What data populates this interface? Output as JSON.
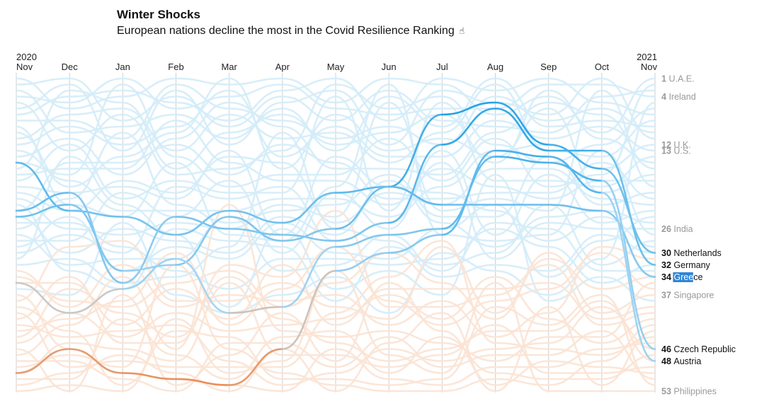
{
  "header": {
    "title": "Winter Shocks",
    "subtitle": "European nations decline the most in the Covid Resilience Ranking",
    "cursor_icon": "pointer-hand-icon"
  },
  "colors": {
    "top_accent": "#1a9fe6",
    "top_light": "#d4ecf8",
    "bottom_accent": "#ee8c52",
    "bottom_light": "#fbe3d4",
    "grid": "#cfcfcf",
    "selection": "#2f86d6"
  },
  "chart_data": {
    "type": "line",
    "title": "Winter Shocks",
    "subtitle": "European nations decline the most in the Covid Resilience Ranking",
    "x": [
      "Nov",
      "Dec",
      "Jan",
      "Feb",
      "Mar",
      "Apr",
      "May",
      "Jun",
      "Jul",
      "Aug",
      "Sep",
      "Oct",
      "Nov"
    ],
    "x_year_labels": [
      {
        "index": 0,
        "label": "2020"
      },
      {
        "index": 12,
        "label": "2021"
      }
    ],
    "ylim": [
      1,
      53
    ],
    "y_inverted": true,
    "grid": "vertical",
    "highlighted_series": [
      {
        "name": "Netherlands",
        "final_rank": 30,
        "values": [
          15,
          23,
          24,
          27,
          23,
          25,
          20,
          19,
          7,
          5,
          12,
          16,
          30
        ]
      },
      {
        "name": "Germany",
        "final_rank": 32,
        "values": [
          23,
          20,
          35,
          24,
          26,
          27,
          28,
          25,
          12,
          6,
          13,
          13,
          32
        ]
      },
      {
        "name": "Greece",
        "final_rank": 34,
        "values": [
          24,
          22,
          33,
          32,
          24,
          28,
          26,
          19,
          22,
          22,
          22,
          23,
          34
        ]
      },
      {
        "name": "Czech Republic",
        "final_rank": 46,
        "values": [
          35,
          40,
          36,
          31,
          40,
          39,
          29,
          27,
          26,
          14,
          15,
          18,
          46
        ]
      },
      {
        "name": "Austria",
        "final_rank": 48,
        "values": [
          50,
          46,
          50,
          51,
          52,
          46,
          33,
          30,
          27,
          13,
          14,
          20,
          48
        ]
      }
    ],
    "labels": [
      {
        "rank": 1,
        "name": "U.A.E.",
        "style": "gray"
      },
      {
        "rank": 4,
        "name": "Ireland",
        "style": "gray"
      },
      {
        "rank": 12,
        "name": "U.K.",
        "style": "gray"
      },
      {
        "rank": 13,
        "name": "U.S.",
        "style": "gray"
      },
      {
        "rank": 26,
        "name": "India",
        "style": "gray"
      },
      {
        "rank": 30,
        "name": "Netherlands",
        "style": "dark"
      },
      {
        "rank": 32,
        "name": "Germany",
        "style": "dark"
      },
      {
        "rank": 34,
        "name": "Greece",
        "style": "dark",
        "selected": true
      },
      {
        "rank": 37,
        "name": "Singapore",
        "style": "gray"
      },
      {
        "rank": 46,
        "name": "Czech Republic",
        "style": "dark"
      },
      {
        "rank": 48,
        "name": "Austria",
        "style": "dark"
      },
      {
        "rank": 53,
        "name": "Philippines",
        "style": "gray"
      }
    ]
  }
}
